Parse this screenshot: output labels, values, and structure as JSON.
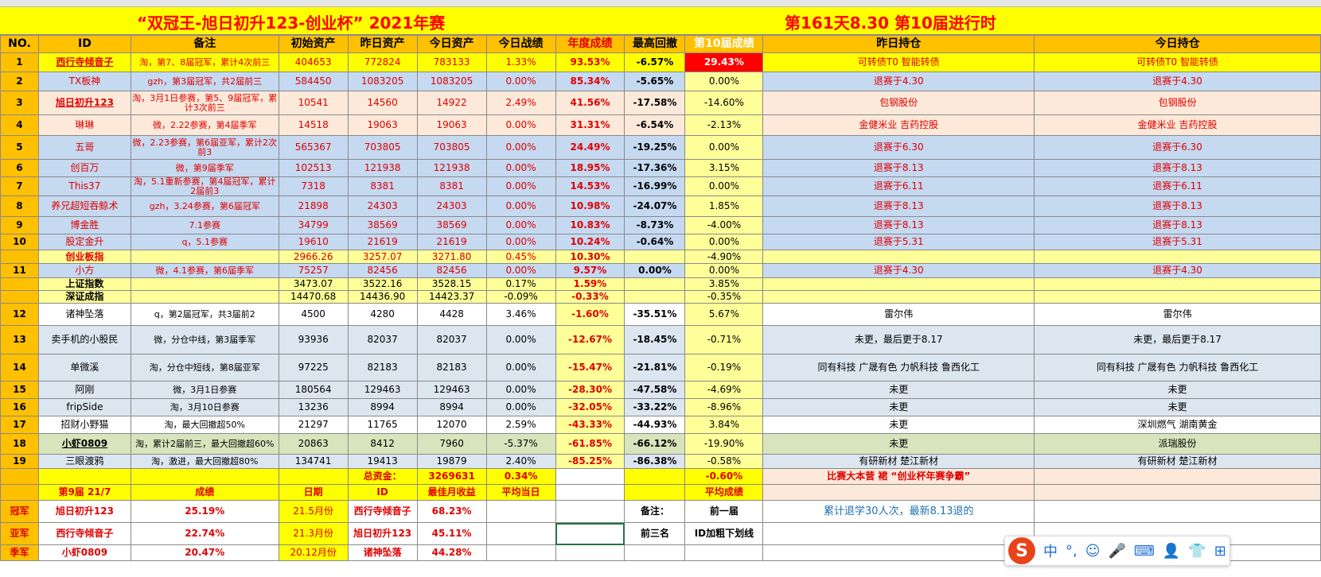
{
  "header": {
    "title_left": "“双冠王-旭日初升123-创业杯” 2021年赛",
    "title_right": "第161天8.30 第10届进行时"
  },
  "columns": [
    "NO.",
    "ID",
    "备注",
    "初始资产",
    "昨日资产",
    "今日资产",
    "今日战绩",
    "年度成绩",
    "最高回撤",
    "第10届成绩",
    "昨日持仓",
    "今日持仓"
  ],
  "rows": [
    {
      "no": "1",
      "id": "西行寺倾音子",
      "note": "淘，第7、8届冠军，累计4次前三",
      "init": "404653",
      "yest": "772824",
      "today": "783133",
      "day": "1.33%",
      "year": "93.53%",
      "dd": "-6.57%",
      "s10": "29.43%",
      "yh": "可转债T0 智能转债",
      "th": "可转债T0 智能转债"
    },
    {
      "no": "2",
      "id": "TX板神",
      "note": "gzh，第3届冠军，共2届前三",
      "init": "584450",
      "yest": "1083205",
      "today": "1083205",
      "day": "0.00%",
      "year": "85.34%",
      "dd": "-5.65%",
      "s10": "0.00%",
      "yh": "退赛于4.30",
      "th": "退赛于4.30"
    },
    {
      "no": "3",
      "id": "旭日初升123",
      "note": "淘，3月1日参赛，第5、9届冠军，累计3次前三",
      "init": "10541",
      "yest": "14560",
      "today": "14922",
      "day": "2.49%",
      "year": "41.56%",
      "dd": "-17.58%",
      "s10": "-14.60%",
      "yh": "包钢股份",
      "th": "包钢股份"
    },
    {
      "no": "4",
      "id": "琳琳",
      "note": "微，2.22参赛，第4届季军",
      "init": "14518",
      "yest": "19063",
      "today": "19063",
      "day": "0.00%",
      "year": "31.31%",
      "dd": "-6.54%",
      "s10": "-2.13%",
      "yh": "金健米业 吉药控股",
      "th": "金健米业 吉药控股"
    },
    {
      "no": "5",
      "id": "五哥",
      "note": "微，2.23参赛，第6届亚军，累计2次前3",
      "init": "565367",
      "yest": "703805",
      "today": "703805",
      "day": "0.00%",
      "year": "24.49%",
      "dd": "-19.25%",
      "s10": "0.00%",
      "yh": "退赛于6.30",
      "th": "退赛于6.30"
    },
    {
      "no": "6",
      "id": "创百万",
      "note": "微，第9届季军",
      "init": "102513",
      "yest": "121938",
      "today": "121938",
      "day": "0.00%",
      "year": "18.95%",
      "dd": "-17.36%",
      "s10": "3.15%",
      "yh": "退赛于8.13",
      "th": "退赛于8.13"
    },
    {
      "no": "7",
      "id": "This37",
      "note": "淘，5.1重新参赛，第4届冠军，累计2届前3",
      "init": "7318",
      "yest": "8381",
      "today": "8381",
      "day": "0.00%",
      "year": "14.53%",
      "dd": "-16.99%",
      "s10": "0.00%",
      "yh": "退赛于6.11",
      "th": "退赛于6.11"
    },
    {
      "no": "8",
      "id": "养兄超短吞鲸术",
      "note": "gzh，3.24参赛，第6届冠军",
      "init": "21898",
      "yest": "24303",
      "today": "24303",
      "day": "0.00%",
      "year": "10.98%",
      "dd": "-24.07%",
      "s10": "1.85%",
      "yh": "退赛于8.13",
      "th": "退赛于8.13"
    },
    {
      "no": "9",
      "id": "博金胜",
      "note": "7.1参赛",
      "init": "34799",
      "yest": "38569",
      "today": "38569",
      "day": "0.00%",
      "year": "10.83%",
      "dd": "-8.73%",
      "s10": "-4.00%",
      "yh": "退赛于8.13",
      "th": "退赛于8.13"
    },
    {
      "no": "10",
      "id": "股定金升",
      "note": "q，5.1参赛",
      "init": "19610",
      "yest": "21619",
      "today": "21619",
      "day": "0.00%",
      "year": "10.24%",
      "dd": "-0.64%",
      "s10": "0.00%",
      "yh": "退赛于5.31",
      "th": "退赛于5.31"
    },
    {
      "no": "",
      "id": "创业板指",
      "note": "",
      "init": "2966.26",
      "yest": "3257.07",
      "today": "3271.80",
      "day": "0.45%",
      "year": "10.30%",
      "dd": "",
      "s10": "-4.90%",
      "yh": "",
      "th": ""
    },
    {
      "no": "11",
      "id": "小方",
      "note": "微，4.1参赛，第6届季军",
      "init": "75257",
      "yest": "82456",
      "today": "82456",
      "day": "0.00%",
      "year": "9.57%",
      "dd": "0.00%",
      "s10": "0.00%",
      "yh": "退赛于4.30",
      "th": "退赛于4.30"
    },
    {
      "no": "",
      "id": "上证指数",
      "note": "",
      "init": "3473.07",
      "yest": "3522.16",
      "today": "3528.15",
      "day": "0.17%",
      "year": "1.59%",
      "dd": "",
      "s10": "3.85%",
      "yh": "",
      "th": ""
    },
    {
      "no": "",
      "id": "深证成指",
      "note": "",
      "init": "14470.68",
      "yest": "14436.90",
      "today": "14423.37",
      "day": "-0.09%",
      "year": "-0.33%",
      "dd": "",
      "s10": "-0.35%",
      "yh": "",
      "th": ""
    },
    {
      "no": "12",
      "id": "诸神坠落",
      "note": "q，第2届冠军，共3届前2",
      "init": "4500",
      "yest": "4280",
      "today": "4428",
      "day": "3.46%",
      "year": "-1.60%",
      "dd": "-35.51%",
      "s10": "5.67%",
      "yh": "雷尔伟",
      "th": "雷尔伟"
    },
    {
      "no": "13",
      "id": "卖手机的小股民",
      "note": "微，分仓中线，第3届季军",
      "init": "93936",
      "yest": "82037",
      "today": "82037",
      "day": "0.00%",
      "year": "-12.67%",
      "dd": "-18.45%",
      "s10": "-0.71%",
      "yh": "未更，最后更于8.17",
      "th": "未更，最后更于8.17"
    },
    {
      "no": "14",
      "id": "单微溪",
      "note": "淘，分仓中短线，第8届亚军",
      "init": "97225",
      "yest": "82183",
      "today": "82183",
      "day": "0.00%",
      "year": "-15.47%",
      "dd": "-21.81%",
      "s10": "-0.19%",
      "yh": "同有科技 广晟有色 力帆科技 鲁西化工",
      "th": "同有科技 广晟有色 力帆科技 鲁西化工"
    },
    {
      "no": "15",
      "id": "阿刚",
      "note": "微，3月1日参赛",
      "init": "180564",
      "yest": "129463",
      "today": "129463",
      "day": "0.00%",
      "year": "-28.30%",
      "dd": "-47.58%",
      "s10": "-4.69%",
      "yh": "未更",
      "th": "未更"
    },
    {
      "no": "16",
      "id": "fripSide",
      "note": "淘，3月10日参赛",
      "init": "13236",
      "yest": "8994",
      "today": "8994",
      "day": "0.00%",
      "year": "-32.05%",
      "dd": "-33.22%",
      "s10": "-8.96%",
      "yh": "未更",
      "th": "未更"
    },
    {
      "no": "17",
      "id": "招财小野猫",
      "note": "淘，最大回撤超50%",
      "init": "21297",
      "yest": "11765",
      "today": "12070",
      "day": "2.59%",
      "year": "-43.33%",
      "dd": "-44.93%",
      "s10": "3.84%",
      "yh": "未更",
      "th": "深圳燃气 湖南黄金"
    },
    {
      "no": "18",
      "id": "小虾0809",
      "note": "淘，累计2届前三，最大回撤超60%",
      "init": "20863",
      "yest": "8412",
      "today": "7960",
      "day": "-5.37%",
      "year": "-61.85%",
      "dd": "-66.12%",
      "s10": "-19.90%",
      "yh": "未更",
      "th": "派瑞股份"
    },
    {
      "no": "19",
      "id": "三眼渡鸦",
      "note": "淘，激进，最大回撤超80%",
      "init": "134741",
      "yest": "19413",
      "today": "19879",
      "day": "2.40%",
      "year": "-85.25%",
      "dd": "-86.38%",
      "s10": "-0.58%",
      "yh": "有研新材 楚江新材",
      "th": "有研新材 楚江新材"
    }
  ],
  "totals": {
    "label": "总资金：",
    "value": "3269631",
    "day": "0.34%",
    "s10": "-0.60%",
    "note": "比赛大本营 裙 “创业杯年赛争霸”"
  },
  "ninth": {
    "head": [
      "第9届 21/7",
      "成绩",
      "日期",
      "ID",
      "最佳月收益",
      "平均当日",
      "",
      "",
      "平均成绩"
    ],
    "r1": {
      "rank": "冠军",
      "name": "旭日初升123",
      "score": "25.19%",
      "date": "21.5月份",
      "id": "西行寺倾音子",
      "best": "68.23%",
      "label": "备注：",
      "prev": "前一届",
      "note": "累计退学30人次，最新8.13退的"
    },
    "r2": {
      "rank": "亚军",
      "name": "西行寺倾音子",
      "score": "22.74%",
      "date": "21.3月份",
      "id": "旭日初升123",
      "best": "45.11%",
      "label": "前三名",
      "prev": "ID加粗下划线"
    },
    "r3": {
      "rank": "季军",
      "name": "小虾0809",
      "score": "20.47%",
      "date": "20.12月份",
      "id": "诸神坠落",
      "best": "44.28%"
    }
  },
  "ime": {
    "logo": "S",
    "items": [
      "中",
      "°,",
      "☺",
      "🎤",
      "⌨",
      "👤",
      "👕",
      "⊞"
    ]
  },
  "colors": {
    "title_bg": "#ffff00",
    "header_bg": "#ffc000",
    "red": "#e00000",
    "blue_row": "#c5d9f1",
    "pink_row": "#fde9d9",
    "green_row": "#d8e4bc"
  }
}
